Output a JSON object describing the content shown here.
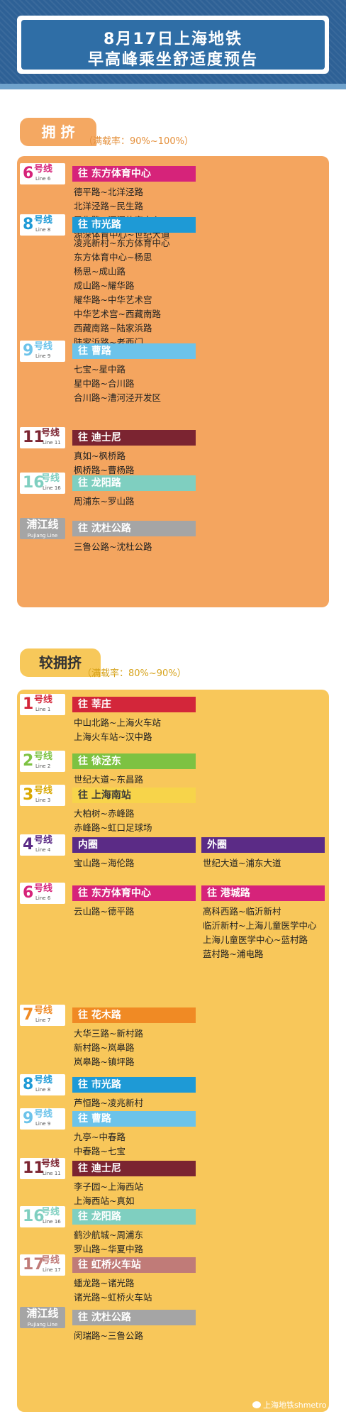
{
  "header": {
    "line1": "8月17日上海地铁",
    "line2": "早高峰乘坐舒适度预告"
  },
  "colors": {
    "crowded_panel": "#f4a55f",
    "less_panel": "#f8c75a",
    "header_bg": "#2e6196"
  },
  "crowded": {
    "title": "拥 挤",
    "subtitle": "（满载率：90%~100%）",
    "lines": [
      {
        "num": "6",
        "cn": "号线",
        "en": "Line 6",
        "color": "#d6237a",
        "dirs": [
          {
            "label": "往  东方体育中心",
            "segments": [
              "德平路~北洋泾路",
              "北洋泾路~民生路",
              "民生路~源深体育中心",
              "源深体育中心~世纪大道"
            ]
          }
        ]
      },
      {
        "num": "8",
        "cn": "号线",
        "en": "Line 8",
        "color": "#1e9ad6",
        "dirs": [
          {
            "label": "往  市光路",
            "segments": [
              "凌兆新村~东方体育中心",
              "东方体育中心~杨思",
              "杨思~成山路",
              "成山路~耀华路",
              "耀华路~中华艺术宫",
              "中华艺术宫~西藏南路",
              "西藏南路~陆家浜路",
              "陆家浜路~老西门"
            ]
          }
        ]
      },
      {
        "num": "9",
        "cn": "号线",
        "en": "Line 9",
        "color": "#6cc3ea",
        "dirs": [
          {
            "label": "往  曹路",
            "segments": [
              "七宝~星中路",
              "星中路~合川路",
              "合川路~漕河泾开发区"
            ]
          }
        ]
      },
      {
        "num": "11",
        "cn": "号线",
        "en": "Line 11",
        "color": "#7b2431",
        "dirs": [
          {
            "label": "往  迪士尼",
            "segments": [
              "真如~枫桥路",
              "枫桥路~曹杨路"
            ]
          }
        ]
      },
      {
        "num": "16",
        "cn": "号线",
        "en": "Line 16",
        "color": "#7fcfc0",
        "dirs": [
          {
            "label": "往  龙阳路",
            "segments": [
              "周浦东~罗山路"
            ]
          }
        ]
      },
      {
        "num": "",
        "cn": "浦江线",
        "en": "Pujiang Line",
        "color": "#a5a5a5",
        "dirs": [
          {
            "label": "往  沈杜公路",
            "segments": [
              "三鲁公路~沈杜公路"
            ]
          }
        ]
      }
    ]
  },
  "less": {
    "title": "较拥挤",
    "subtitle": "（满载率：80%~90%）",
    "lines": [
      {
        "num": "1",
        "cn": "号线",
        "en": "Line 1",
        "color": "#d3263a",
        "dirs": [
          {
            "label": "往  莘庄",
            "segments": [
              "中山北路~上海火车站",
              "上海火车站~汉中路"
            ]
          }
        ]
      },
      {
        "num": "2",
        "cn": "号线",
        "en": "Line 2",
        "color": "#7dc242",
        "dirs": [
          {
            "label": "往  徐泾东",
            "segments": [
              "世纪大道~东昌路"
            ]
          }
        ]
      },
      {
        "num": "3",
        "cn": "号线",
        "en": "Line 3",
        "color": "#f7d44a",
        "dirs": [
          {
            "label": "往  上海南站",
            "segments": [
              "大柏树~赤峰路",
              "赤峰路~虹口足球场"
            ]
          }
        ]
      },
      {
        "num": "4",
        "cn": "号线",
        "en": "Line 4",
        "color": "#5b2b86",
        "dirs": [
          {
            "label": "内圈",
            "segments": [
              "宝山路~海伦路"
            ]
          },
          {
            "label": "外圈",
            "segments": [
              "世纪大道~浦东大道"
            ]
          }
        ]
      },
      {
        "num": "6",
        "cn": "号线",
        "en": "Line 6",
        "color": "#d6237a",
        "dirs": [
          {
            "label": "往  东方体育中心",
            "segments": [
              "云山路~德平路"
            ]
          },
          {
            "label": "往  港城路",
            "segments": [
              "高科西路~临沂新村",
              "临沂新村~上海儿童医学中心",
              "上海儿童医学中心~蓝村路",
              "蓝村路~浦电路"
            ]
          }
        ]
      },
      {
        "num": "7",
        "cn": "号线",
        "en": "Line 7",
        "color": "#f08a24",
        "dirs": [
          {
            "label": "往  花木路",
            "segments": [
              "大华三路~新村路",
              "新村路~岚皋路",
              "岚皋路~镇坪路"
            ]
          }
        ]
      },
      {
        "num": "8",
        "cn": "号线",
        "en": "Line 8",
        "color": "#1e9ad6",
        "dirs": [
          {
            "label": "往  市光路",
            "segments": [
              "芦恒路~凌兆新村"
            ]
          }
        ]
      },
      {
        "num": "9",
        "cn": "号线",
        "en": "Line 9",
        "color": "#6cc3ea",
        "dirs": [
          {
            "label": "往  曹路",
            "segments": [
              "九亭~中春路",
              "中春路~七宝"
            ]
          }
        ]
      },
      {
        "num": "11",
        "cn": "号线",
        "en": "Line 11",
        "color": "#7b2431",
        "dirs": [
          {
            "label": "往  迪士尼",
            "segments": [
              "李子园~上海西站",
              "上海西站~真如"
            ]
          }
        ]
      },
      {
        "num": "16",
        "cn": "号线",
        "en": "Line 16",
        "color": "#7fcfc0",
        "dirs": [
          {
            "label": "往  龙阳路",
            "segments": [
              "鹤沙航城~周浦东",
              "罗山路~华夏中路"
            ]
          }
        ]
      },
      {
        "num": "17",
        "cn": "号线",
        "en": "Line 17",
        "color": "#c07b78",
        "dirs": [
          {
            "label": "往  虹桥火车站",
            "segments": [
              "蟠龙路~诸光路",
              "诸光路~虹桥火车站"
            ]
          }
        ]
      },
      {
        "num": "",
        "cn": "浦江线",
        "en": "Pujiang Line",
        "color": "#a5a5a5",
        "dirs": [
          {
            "label": "往  沈杜公路",
            "segments": [
              "闵瑞路~三鲁公路"
            ]
          }
        ]
      }
    ]
  },
  "footer": {
    "logo_text": "上海地铁shmetro"
  }
}
